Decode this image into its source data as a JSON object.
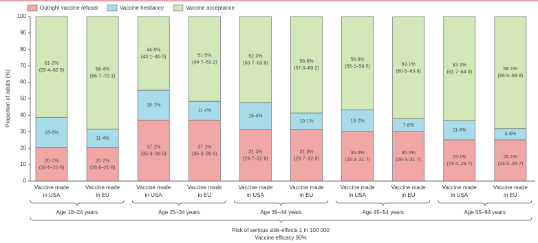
{
  "chart_data": {
    "type": "stacked-bar",
    "ylabel": "Proportion of adults (%)",
    "xlabel": [
      "Risk of serious side-effects 1 in 100 000",
      "Vaccine efficacy 90%"
    ],
    "categories": [
      [
        "Vaccine made",
        "in USA"
      ],
      [
        "Vaccine made",
        "in EU"
      ],
      [
        "Vaccine made",
        "in USA"
      ],
      [
        "Vaccine made",
        "in EU"
      ],
      [
        "Vaccine made",
        "in USA"
      ],
      [
        "Vaccine made",
        "in EU"
      ],
      [
        "Vaccine made",
        "in USA"
      ],
      [
        "Vaccine made",
        "in EU"
      ],
      [
        "Vaccine made",
        "in USA"
      ],
      [
        "Vaccine made",
        "in EU"
      ]
    ],
    "groups": [
      "Age 18–24 years",
      "Age 25–34 years",
      "Age 35–44 years",
      "Age 45–54 years",
      "Age 55–64 years"
    ],
    "ylim": [
      0,
      100
    ],
    "yticks": [
      0,
      10,
      20,
      30,
      40,
      50,
      60,
      70,
      80,
      90,
      100
    ],
    "legend": "top-left",
    "series": [
      {
        "name": "Outright vaccine refusal",
        "color": "#f2a7a7",
        "values": [
          20.2,
          20.2,
          37.1,
          37.1,
          31.3,
          31.3,
          30.0,
          30.0,
          25.1,
          25.1
        ],
        "value_labels": [
          "20·2%",
          "20·2%",
          "37·1%",
          "37·1%",
          "31·3%",
          "31·3%",
          "30·0%",
          "30·0%",
          "25·1%",
          "25·1%"
        ],
        "intervals": [
          "(18·6–21·8)",
          "(18·6–21·8)",
          "(35·3–39·0)",
          "(35·3–39·0)",
          "(29·7–32·9)",
          "(29·7–32·9)",
          "(28·3–31·7)",
          "(28·3–31·7)",
          "(23·5–26·7)",
          "(23·5–26·7)"
        ]
      },
      {
        "name": "Vaccine hesitancy",
        "color": "#a8dceb",
        "values": [
          18.6,
          11.4,
          18.1,
          11.4,
          16.4,
          10.1,
          13.2,
          7.8,
          11.6,
          6.8
        ],
        "value_labels": [
          "18·6%",
          "11·4%",
          "18·1%",
          "11·4%",
          "16·4%",
          "10·1%",
          "13·2%",
          "7·8%",
          "11·6%",
          "6·8%"
        ]
      },
      {
        "name": "Vaccine acceptance",
        "color": "#d2e8b8",
        "values": [
          61.2,
          68.4,
          44.8,
          51.5,
          52.3,
          58.6,
          56.8,
          62.1,
          63.3,
          68.1
        ],
        "value_labels": [
          "61·2%",
          "68·4%",
          "44·8%",
          "51·5%",
          "52·3%",
          "58·6%",
          "56·8%",
          "62·1%",
          "63·3%",
          "68·1%"
        ],
        "intervals": [
          "(59·4–62·9)",
          "(66·7–70·1)",
          "(43·1–46·5)",
          "(49·7–53·2)",
          "(50·7–53·9)",
          "(57·0–60·2)",
          "(55·2–58·5)",
          "(60·5–63·8)",
          "(61·7–64·9)",
          "(66·5–69·8)"
        ]
      }
    ]
  }
}
